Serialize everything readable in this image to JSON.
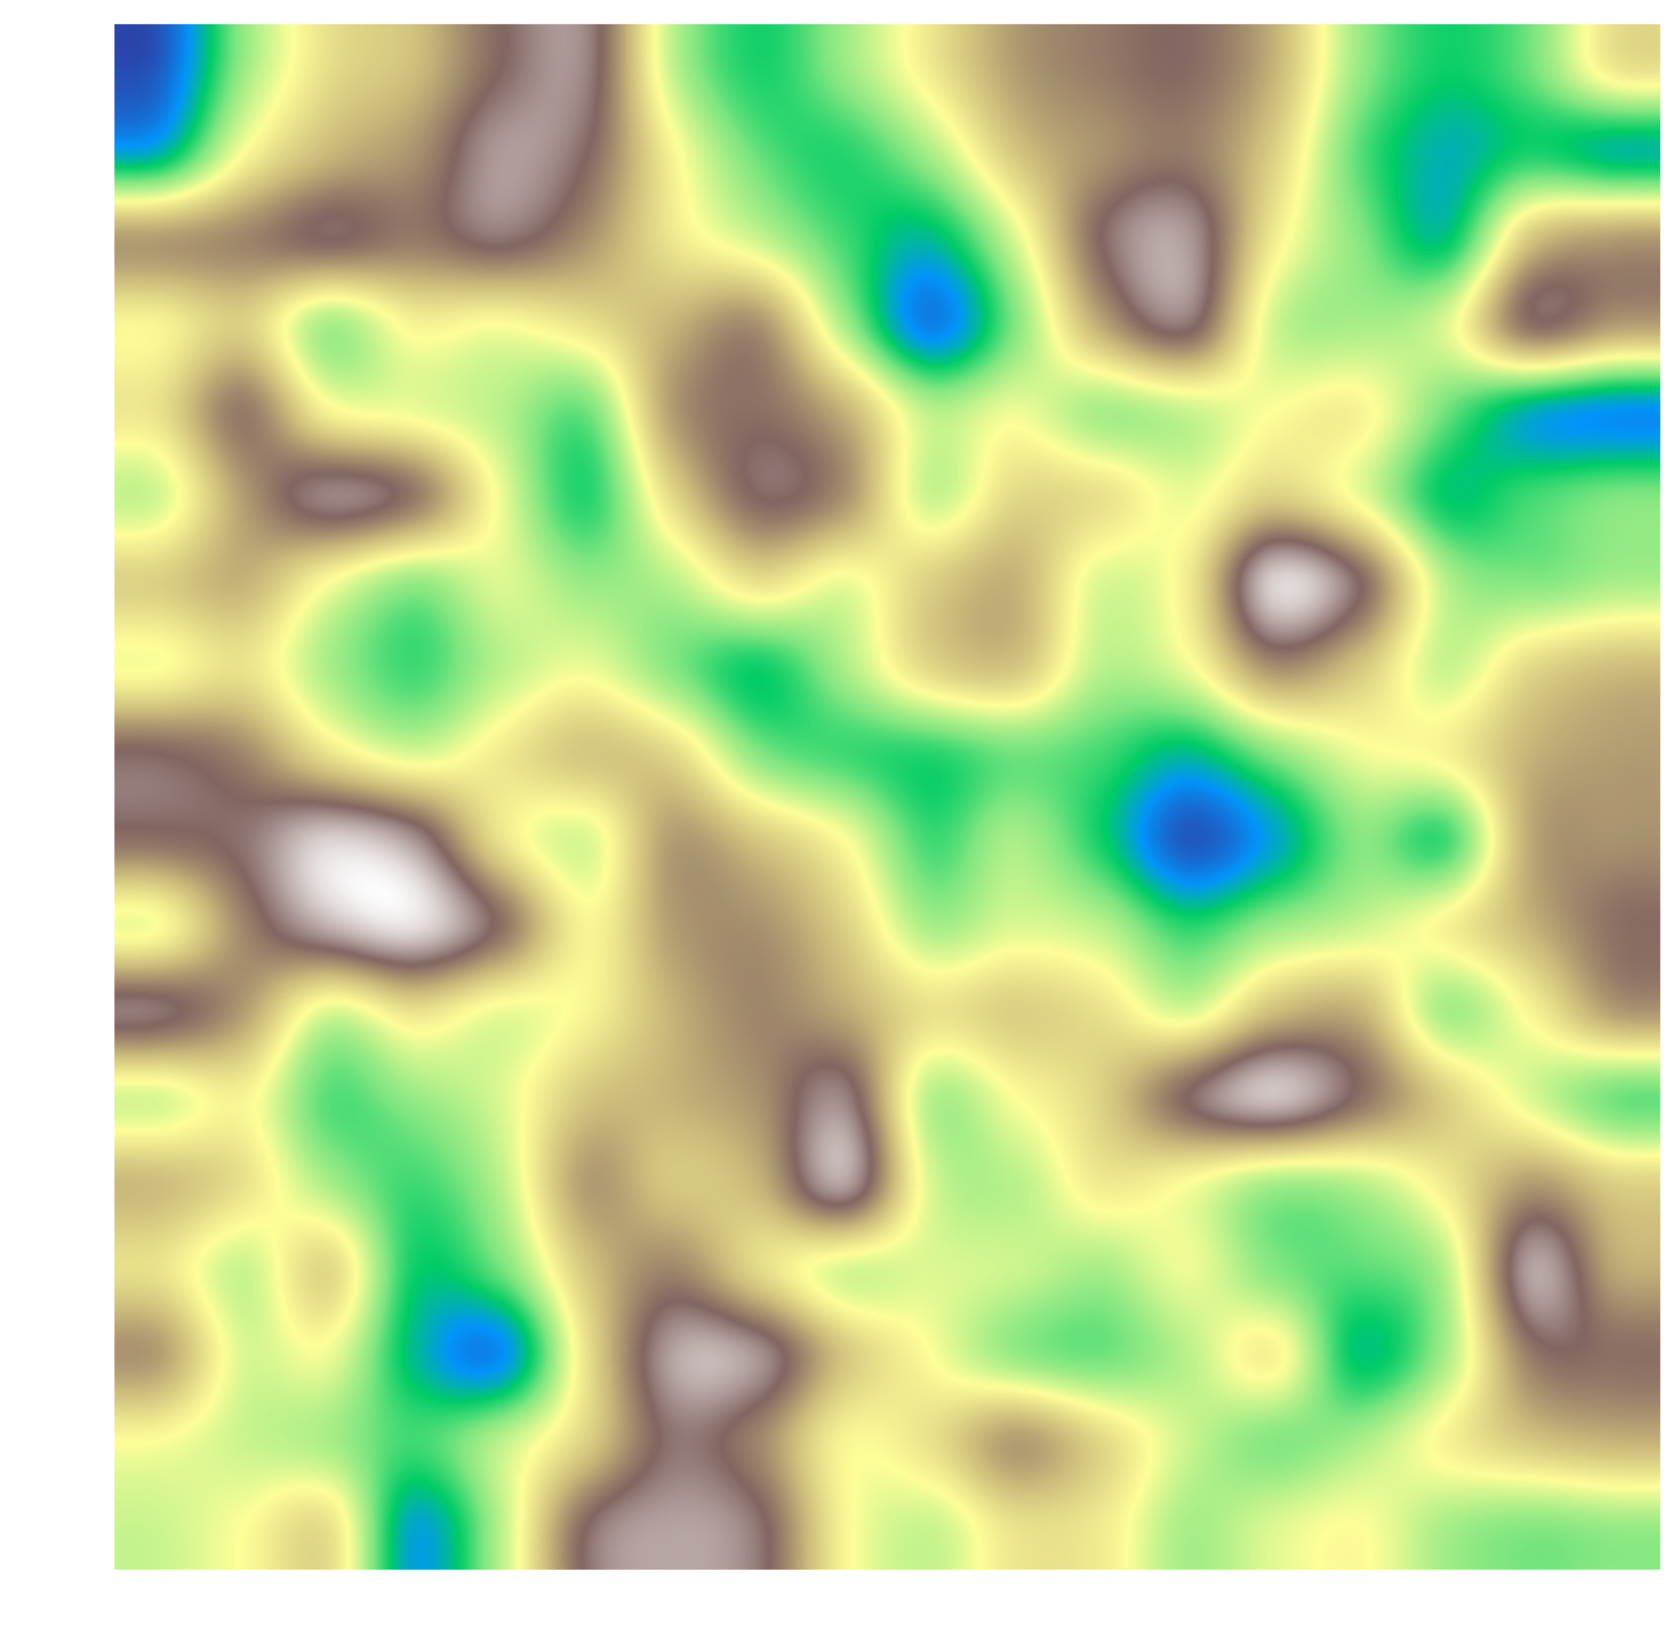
{
  "chart_data": {
    "type": "heatmap",
    "title": "",
    "xlabel": "",
    "ylabel": "",
    "axes_visible": false,
    "colormap": "terrain",
    "colormap_stops": [
      "#333399",
      "#0294fa",
      "#00cc66",
      "#7fe680",
      "#fefe98",
      "#cbb97a",
      "#826561",
      "#ffffff"
    ],
    "grid_resolution": [
      18,
      18
    ],
    "value_range": [
      0,
      1
    ],
    "interpolation": "bicubic",
    "values": [
      [
        0.06,
        0.38,
        0.57,
        0.64,
        0.8,
        0.84,
        0.43,
        0.27,
        0.38,
        0.54,
        0.7,
        0.76,
        0.79,
        0.66,
        0.38,
        0.26,
        0.34,
        0.55
      ],
      [
        0.2,
        0.5,
        0.65,
        0.72,
        0.87,
        0.8,
        0.52,
        0.33,
        0.28,
        0.4,
        0.62,
        0.72,
        0.76,
        0.6,
        0.32,
        0.2,
        0.27,
        0.22
      ],
      [
        0.7,
        0.74,
        0.8,
        0.76,
        0.82,
        0.72,
        0.55,
        0.44,
        0.3,
        0.22,
        0.46,
        0.8,
        0.87,
        0.54,
        0.36,
        0.24,
        0.62,
        0.7
      ],
      [
        0.52,
        0.6,
        0.4,
        0.52,
        0.5,
        0.56,
        0.66,
        0.72,
        0.4,
        0.12,
        0.36,
        0.68,
        0.82,
        0.45,
        0.4,
        0.46,
        0.78,
        0.7
      ],
      [
        0.56,
        0.76,
        0.52,
        0.48,
        0.42,
        0.34,
        0.7,
        0.78,
        0.66,
        0.42,
        0.48,
        0.4,
        0.44,
        0.5,
        0.52,
        0.34,
        0.2,
        0.15
      ],
      [
        0.45,
        0.7,
        0.84,
        0.76,
        0.48,
        0.28,
        0.58,
        0.8,
        0.72,
        0.44,
        0.58,
        0.56,
        0.48,
        0.6,
        0.48,
        0.25,
        0.3,
        0.35
      ],
      [
        0.6,
        0.66,
        0.5,
        0.38,
        0.46,
        0.38,
        0.42,
        0.56,
        0.48,
        0.6,
        0.66,
        0.46,
        0.54,
        0.94,
        0.8,
        0.42,
        0.36,
        0.4
      ],
      [
        0.5,
        0.56,
        0.4,
        0.3,
        0.42,
        0.48,
        0.36,
        0.26,
        0.4,
        0.58,
        0.62,
        0.42,
        0.48,
        0.72,
        0.62,
        0.44,
        0.58,
        0.64
      ],
      [
        0.8,
        0.74,
        0.56,
        0.46,
        0.54,
        0.62,
        0.58,
        0.36,
        0.3,
        0.28,
        0.34,
        0.3,
        0.22,
        0.36,
        0.48,
        0.52,
        0.66,
        0.7
      ],
      [
        0.78,
        0.82,
        0.94,
        0.86,
        0.56,
        0.46,
        0.7,
        0.62,
        0.5,
        0.3,
        0.4,
        0.26,
        0.06,
        0.18,
        0.36,
        0.3,
        0.68,
        0.72
      ],
      [
        0.5,
        0.74,
        0.9,
        0.96,
        0.78,
        0.52,
        0.7,
        0.72,
        0.6,
        0.4,
        0.46,
        0.42,
        0.28,
        0.38,
        0.44,
        0.52,
        0.66,
        0.78
      ],
      [
        0.82,
        0.7,
        0.46,
        0.56,
        0.48,
        0.52,
        0.66,
        0.74,
        0.68,
        0.56,
        0.6,
        0.56,
        0.46,
        0.64,
        0.66,
        0.4,
        0.52,
        0.7
      ],
      [
        0.46,
        0.52,
        0.32,
        0.38,
        0.46,
        0.62,
        0.66,
        0.72,
        0.84,
        0.42,
        0.5,
        0.6,
        0.8,
        0.92,
        0.78,
        0.6,
        0.46,
        0.34
      ],
      [
        0.64,
        0.56,
        0.4,
        0.3,
        0.42,
        0.7,
        0.62,
        0.66,
        0.88,
        0.46,
        0.42,
        0.54,
        0.5,
        0.4,
        0.42,
        0.54,
        0.7,
        0.6
      ],
      [
        0.56,
        0.44,
        0.58,
        0.26,
        0.34,
        0.62,
        0.74,
        0.58,
        0.46,
        0.46,
        0.44,
        0.4,
        0.48,
        0.36,
        0.32,
        0.42,
        0.88,
        0.68
      ],
      [
        0.7,
        0.46,
        0.48,
        0.22,
        0.14,
        0.56,
        0.88,
        0.86,
        0.62,
        0.5,
        0.38,
        0.34,
        0.42,
        0.52,
        0.24,
        0.4,
        0.76,
        0.78
      ],
      [
        0.5,
        0.44,
        0.4,
        0.3,
        0.42,
        0.6,
        0.82,
        0.74,
        0.52,
        0.56,
        0.7,
        0.58,
        0.44,
        0.36,
        0.4,
        0.52,
        0.62,
        0.66
      ],
      [
        0.44,
        0.5,
        0.56,
        0.18,
        0.42,
        0.8,
        0.88,
        0.82,
        0.52,
        0.44,
        0.56,
        0.54,
        0.4,
        0.46,
        0.5,
        0.4,
        0.36,
        0.38
      ]
    ]
  }
}
